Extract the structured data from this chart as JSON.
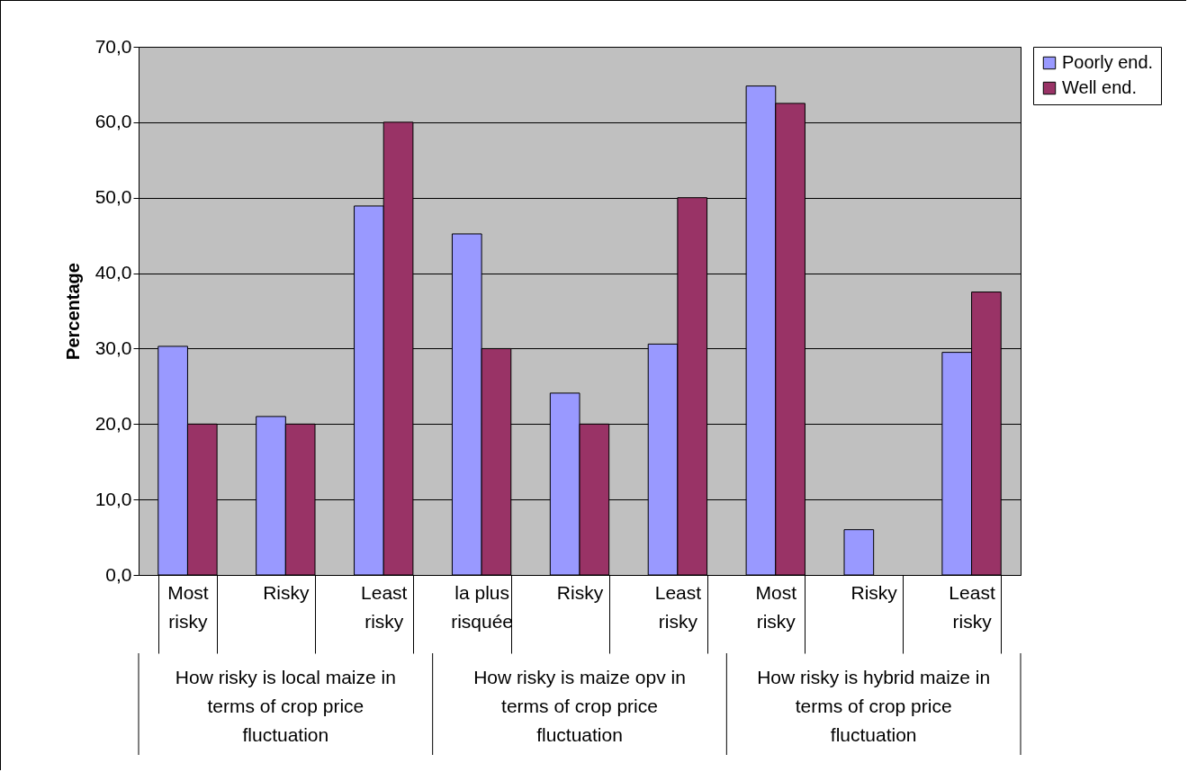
{
  "chart_data": {
    "type": "bar",
    "ylabel": "Percentage",
    "categories": [
      "Most risky",
      "Risky",
      "Least risky",
      "la plus risquée",
      "Risky",
      "Least risky",
      "Most risky",
      "Risky",
      "Least risky"
    ],
    "series": [
      {
        "name": "Poorly end.",
        "color": "#9999ff",
        "values": [
          30.3,
          21.0,
          48.9,
          45.2,
          24.1,
          30.6,
          64.8,
          6.0,
          29.5
        ]
      },
      {
        "name": "Well end.",
        "color": "#993366",
        "values": [
          20.0,
          20.0,
          60.0,
          30.0,
          20.0,
          50.0,
          62.5,
          null,
          37.5
        ]
      }
    ],
    "annotations": [
      "How risky is local maize in terms of crop price fluctuation",
      "How risky is maize opv in terms of crop price fluctuation",
      "How risky is hybrid maize in terms of crop price fluctuation"
    ],
    "ylim": [
      0,
      70
    ],
    "yticks": [
      {
        "value": 0,
        "label": "0,0"
      },
      {
        "value": 10,
        "label": "10,0"
      },
      {
        "value": 20,
        "label": "20,0"
      },
      {
        "value": 30,
        "label": "30,0"
      },
      {
        "value": 40,
        "label": "40,0"
      },
      {
        "value": 50,
        "label": "50,0"
      },
      {
        "value": 60,
        "label": "60,0"
      },
      {
        "value": 70,
        "label": "70,0"
      }
    ],
    "grid": "y",
    "legend": "right"
  }
}
